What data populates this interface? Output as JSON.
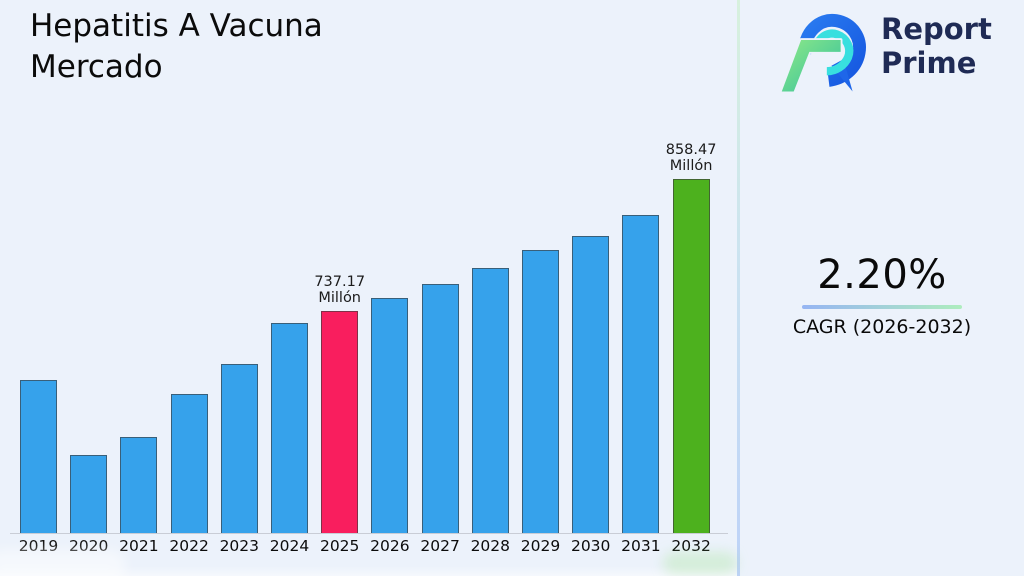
{
  "header": {
    "title": "Hepatitis A Vacuna Mercado"
  },
  "brand": {
    "name_line1": "Report",
    "name_line2": "Prime",
    "logo_icon": "report-prime-logo",
    "navy": "#1F2B55",
    "blue": "#1E66E9",
    "cyan": "#38DFDF",
    "green_light": "#8FE987",
    "green_teal": "#2FBF9F"
  },
  "kpi": {
    "value": "2.20%",
    "caption": "CAGR (2026-2032)"
  },
  "colors": {
    "background": "#ECF2FB",
    "bar_default": "#36A2EB",
    "bar_highlight_2025": "#F91E5E",
    "bar_highlight_2032": "#4DB11E",
    "bar_border": "rgba(60,60,60,0.65)",
    "axis_line": "#C9CDD6",
    "divider_top": "#D7F1DD",
    "divider_bottom": "#BDD2F8",
    "underline_left": "#96B5F3",
    "underline_right": "#AEEDBE"
  },
  "chart_data": {
    "type": "bar",
    "title": "Hepatitis A Vacuna Mercado",
    "value_unit": "Millón",
    "xlabel": "",
    "ylabel": "",
    "grid": false,
    "legend": false,
    "categories": [
      "2019",
      "2020",
      "2021",
      "2022",
      "2023",
      "2024",
      "2025",
      "2026",
      "2027",
      "2028",
      "2029",
      "2030",
      "2031",
      "2032"
    ],
    "values": [
      673.3,
      604.3,
      620.9,
      660.9,
      688.1,
      726.3,
      737.17,
      749.3,
      762.2,
      776.9,
      793.0,
      806.4,
      825.3,
      858.47
    ],
    "labeled_values_note": "only 2025 and 2032 carry printed data labels; other values estimated from bar heights",
    "data_labels": {
      "2025": "737.17\nMillón",
      "2032": "858.47\nMillón"
    },
    "highlight_colors": {
      "2025": "#F91E5E",
      "2032": "#4DB11E"
    },
    "bar_color_default": "#36A2EB",
    "axis": {
      "value_at_baseline": 532,
      "pixels_per_unit": 1.086,
      "note": "y-axis not zero-based; bar pixel height = (value - 532) * 1.086"
    },
    "cagr": {
      "value_pct": 2.2,
      "period": "2026-2032"
    }
  }
}
